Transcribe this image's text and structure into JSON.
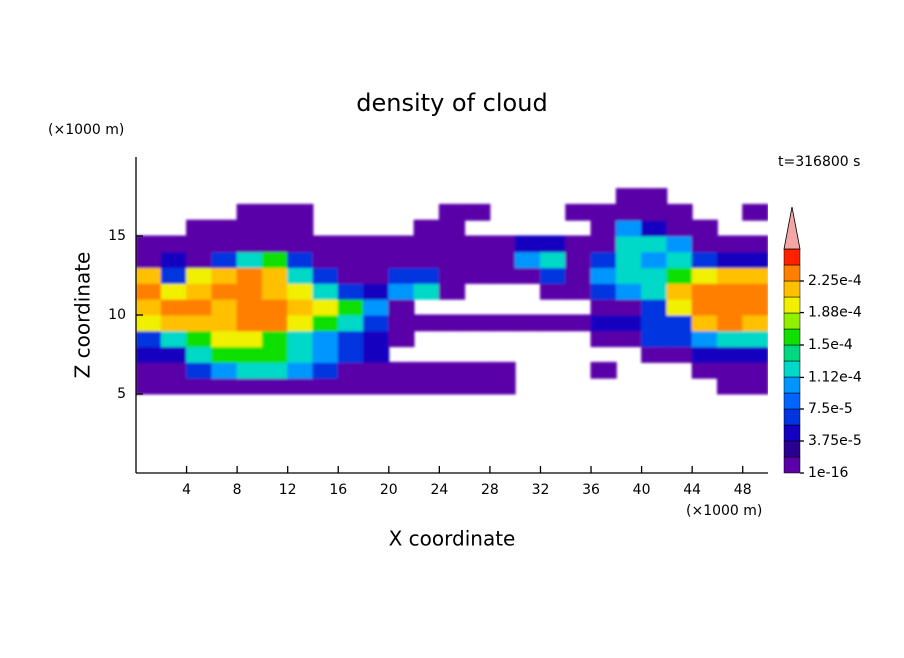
{
  "chart_data": {
    "type": "contour",
    "title": "density of cloud",
    "x_label": "X coordinate",
    "y_label": "Z coordinate",
    "x_unit": "(×1000 m)",
    "y_unit": "(×1000 m)",
    "annotation": "t=316800 s",
    "xlim": [
      0,
      50
    ],
    "ylim": [
      0,
      20
    ],
    "xticks": [
      4,
      8,
      12,
      16,
      20,
      24,
      28,
      32,
      36,
      40,
      44,
      48
    ],
    "yticks": [
      5,
      10,
      15
    ],
    "x": [
      1,
      3,
      5,
      7,
      9,
      11,
      13,
      15,
      17,
      19,
      21,
      23,
      25,
      27,
      29,
      31,
      33,
      35,
      37,
      39,
      41,
      43,
      45,
      47,
      49
    ],
    "y": [
      5.5,
      6.5,
      7.5,
      8.5,
      9.5,
      10.5,
      11.5,
      12.5,
      13.5,
      14.5,
      15.5,
      16.5,
      17.5
    ],
    "z": [
      [
        1e-05,
        1e-05,
        1e-05,
        1e-05,
        1e-05,
        1e-05,
        1e-05,
        1e-05,
        1e-05,
        1e-05,
        1e-05,
        1e-05,
        1e-05,
        1e-05,
        1e-05,
        null,
        null,
        null,
        null,
        null,
        null,
        null,
        null,
        1e-05,
        1e-05
      ],
      [
        1e-05,
        1e-05,
        6.5e-05,
        0.0001,
        0.00012,
        0.00012,
        0.0001,
        6.5e-05,
        1e-05,
        1e-05,
        1e-05,
        1e-05,
        1e-05,
        1e-05,
        1e-05,
        null,
        null,
        null,
        1e-05,
        null,
        null,
        null,
        1e-05,
        1e-05,
        1e-05
      ],
      [
        4.5e-05,
        4.5e-05,
        0.00012,
        0.00016,
        0.00016,
        0.00016,
        0.00012,
        0.0001,
        6.5e-05,
        4.5e-05,
        null,
        null,
        null,
        null,
        null,
        null,
        null,
        null,
        null,
        null,
        1e-05,
        1e-05,
        4.5e-05,
        4.5e-05,
        4.5e-05
      ],
      [
        6.5e-05,
        0.00012,
        0.00016,
        0.000195,
        0.000195,
        0.00016,
        0.00012,
        0.0001,
        6.5e-05,
        4.5e-05,
        1e-05,
        null,
        null,
        null,
        null,
        null,
        null,
        null,
        1e-05,
        1e-05,
        6.5e-05,
        6.5e-05,
        0.0001,
        0.00012,
        0.00012
      ],
      [
        0.000195,
        0.000215,
        0.000215,
        0.000215,
        0.00023,
        0.00023,
        0.000195,
        0.00016,
        0.00012,
        6.5e-05,
        1e-05,
        1e-05,
        1e-05,
        1e-05,
        1e-05,
        1e-05,
        1e-05,
        1e-05,
        4.5e-05,
        4.5e-05,
        6.5e-05,
        6.5e-05,
        0.000215,
        0.00023,
        0.000215
      ],
      [
        0.000215,
        0.00023,
        0.00023,
        0.000215,
        0.00023,
        0.00023,
        0.000215,
        0.000195,
        0.00016,
        0.0001,
        1e-05,
        null,
        null,
        null,
        null,
        null,
        null,
        null,
        1e-05,
        1e-05,
        6.5e-05,
        0.000195,
        0.00024,
        0.00024,
        0.00023
      ],
      [
        0.00024,
        0.000195,
        0.000215,
        0.00023,
        0.00023,
        0.000215,
        0.000195,
        0.00012,
        6.5e-05,
        4.5e-05,
        0.0001,
        0.00012,
        1e-05,
        null,
        null,
        null,
        1e-05,
        1e-05,
        6.5e-05,
        0.0001,
        0.00012,
        0.000215,
        0.00024,
        0.00024,
        0.00023
      ],
      [
        0.000215,
        6.5e-05,
        0.000195,
        0.000215,
        0.00023,
        0.000215,
        0.00012,
        6.5e-05,
        1e-05,
        1e-05,
        6.5e-05,
        6.5e-05,
        1e-05,
        1e-05,
        1e-05,
        1e-05,
        6.5e-05,
        1e-05,
        0.0001,
        0.00012,
        0.00012,
        0.00016,
        0.000195,
        0.000215,
        0.000215
      ],
      [
        1e-05,
        4.5e-05,
        1e-05,
        6.5e-05,
        0.00012,
        0.00016,
        6.5e-05,
        1e-05,
        1e-05,
        1e-05,
        1e-05,
        1e-05,
        1e-05,
        1e-05,
        1e-05,
        0.0001,
        0.00012,
        1e-05,
        6.5e-05,
        0.00012,
        0.0001,
        0.00012,
        6.5e-05,
        4.5e-05,
        4.5e-05
      ],
      [
        1e-05,
        1e-05,
        1e-05,
        1e-05,
        1e-05,
        1e-05,
        1e-05,
        1e-05,
        1e-05,
        1e-05,
        1e-05,
        1e-05,
        1e-05,
        1e-05,
        1e-05,
        4.5e-05,
        4.5e-05,
        1e-05,
        1e-05,
        0.00012,
        0.00012,
        0.0001,
        1e-05,
        1e-05,
        1e-05
      ],
      [
        null,
        null,
        1e-05,
        1e-05,
        1e-05,
        1e-05,
        1e-05,
        null,
        null,
        null,
        null,
        1e-05,
        1e-05,
        null,
        null,
        null,
        null,
        null,
        1e-05,
        0.0001,
        4.5e-05,
        1e-05,
        1e-05,
        null,
        null
      ],
      [
        null,
        null,
        null,
        null,
        1e-05,
        1e-05,
        1e-05,
        null,
        null,
        null,
        null,
        null,
        1e-05,
        1e-05,
        null,
        null,
        null,
        1e-05,
        1e-05,
        1e-05,
        1e-05,
        1e-05,
        null,
        null,
        1e-05
      ],
      [
        null,
        null,
        null,
        null,
        null,
        null,
        null,
        null,
        null,
        null,
        null,
        null,
        null,
        null,
        null,
        null,
        null,
        null,
        null,
        1e-05,
        1e-05,
        null,
        null,
        null,
        null
      ]
    ],
    "colorbar": {
      "levels": [
        1e-16,
        1.875e-05,
        3.75e-05,
        5.625e-05,
        7.5e-05,
        9.375e-05,
        0.0001125,
        0.00013125,
        0.00015,
        0.00016875,
        0.0001875,
        0.00020625,
        0.000225,
        0.00024375
      ],
      "colors": [
        "#5a00a8",
        "#2a0090",
        "#1400c0",
        "#0034e0",
        "#0064ff",
        "#0096ff",
        "#00d8c8",
        "#00d880",
        "#10e000",
        "#90f000",
        "#f0f000",
        "#ffc000",
        "#ff8000",
        "#ff2000"
      ],
      "extend_color": "#f4a6a6",
      "ticks": [
        {
          "value": 1e-16,
          "label": "1e-16"
        },
        {
          "value": 3.75e-05,
          "label": "3.75e-5"
        },
        {
          "value": 7.5e-05,
          "label": "7.5e-5"
        },
        {
          "value": 0.000112,
          "label": "1.12e-4"
        },
        {
          "value": 0.00015,
          "label": "1.5e-4"
        },
        {
          "value": 0.000188,
          "label": "1.88e-4"
        },
        {
          "value": 0.000225,
          "label": "2.25e-4"
        }
      ]
    }
  }
}
